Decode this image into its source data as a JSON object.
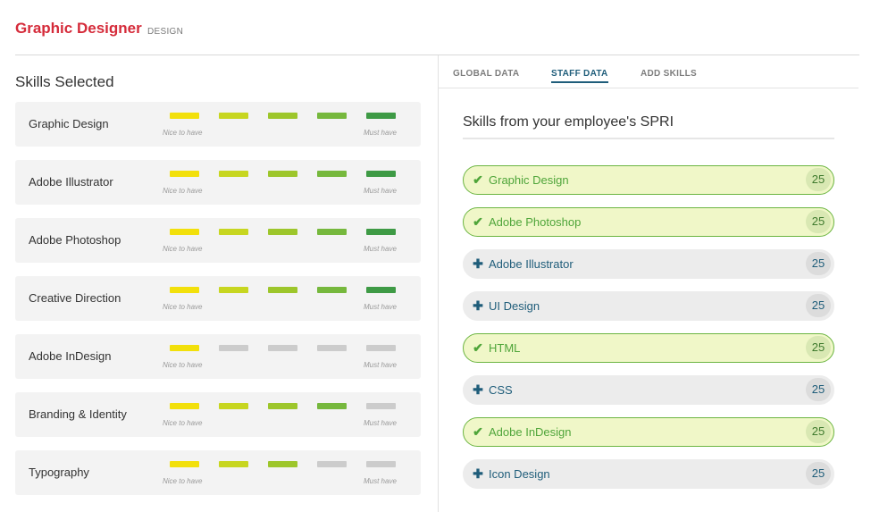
{
  "header": {
    "title": "Graphic Designer",
    "department": "DESIGN"
  },
  "colors": {
    "brand_red": "#d52b3a",
    "level_1": "#f2e00b",
    "level_2": "#c7d620",
    "level_3": "#9dc62b",
    "level_4": "#76b83d",
    "level_5": "#3e9a45",
    "inactive": "#cccccc",
    "selected_green": "#6cb542",
    "accent_blue": "#1f5d7a"
  },
  "skills_selected": {
    "title": "Skills Selected",
    "scale_min_label": "Nice to have",
    "scale_max_label": "Must have",
    "items": [
      {
        "name": "Graphic Design",
        "level": 5
      },
      {
        "name": "Adobe Illustrator",
        "level": 5
      },
      {
        "name": "Adobe Photoshop",
        "level": 5
      },
      {
        "name": "Creative Direction",
        "level": 5
      },
      {
        "name": "Adobe InDesign",
        "level": 1
      },
      {
        "name": "Branding & Identity",
        "level": 4
      },
      {
        "name": "Typography",
        "level": 3
      }
    ]
  },
  "tabs": [
    {
      "label": "GLOBAL DATA",
      "active": false
    },
    {
      "label": "STAFF DATA",
      "active": true
    },
    {
      "label": "ADD SKILLS",
      "active": false
    }
  ],
  "spri": {
    "title": "Skills from your employee's SPRI",
    "items": [
      {
        "name": "Graphic Design",
        "count": "25",
        "selected": true,
        "icon": "check-icon"
      },
      {
        "name": "Adobe Photoshop",
        "count": "25",
        "selected": true,
        "icon": "check-icon"
      },
      {
        "name": "Adobe Illustrator",
        "count": "25",
        "selected": false,
        "icon": "plus-icon"
      },
      {
        "name": "UI Design",
        "count": "25",
        "selected": false,
        "icon": "plus-icon"
      },
      {
        "name": "HTML",
        "count": "25",
        "selected": true,
        "icon": "check-icon"
      },
      {
        "name": "CSS",
        "count": "25",
        "selected": false,
        "icon": "plus-icon"
      },
      {
        "name": "Adobe InDesign",
        "count": "25",
        "selected": true,
        "icon": "check-icon"
      },
      {
        "name": "Icon Design",
        "count": "25",
        "selected": false,
        "icon": "plus-icon"
      }
    ]
  }
}
